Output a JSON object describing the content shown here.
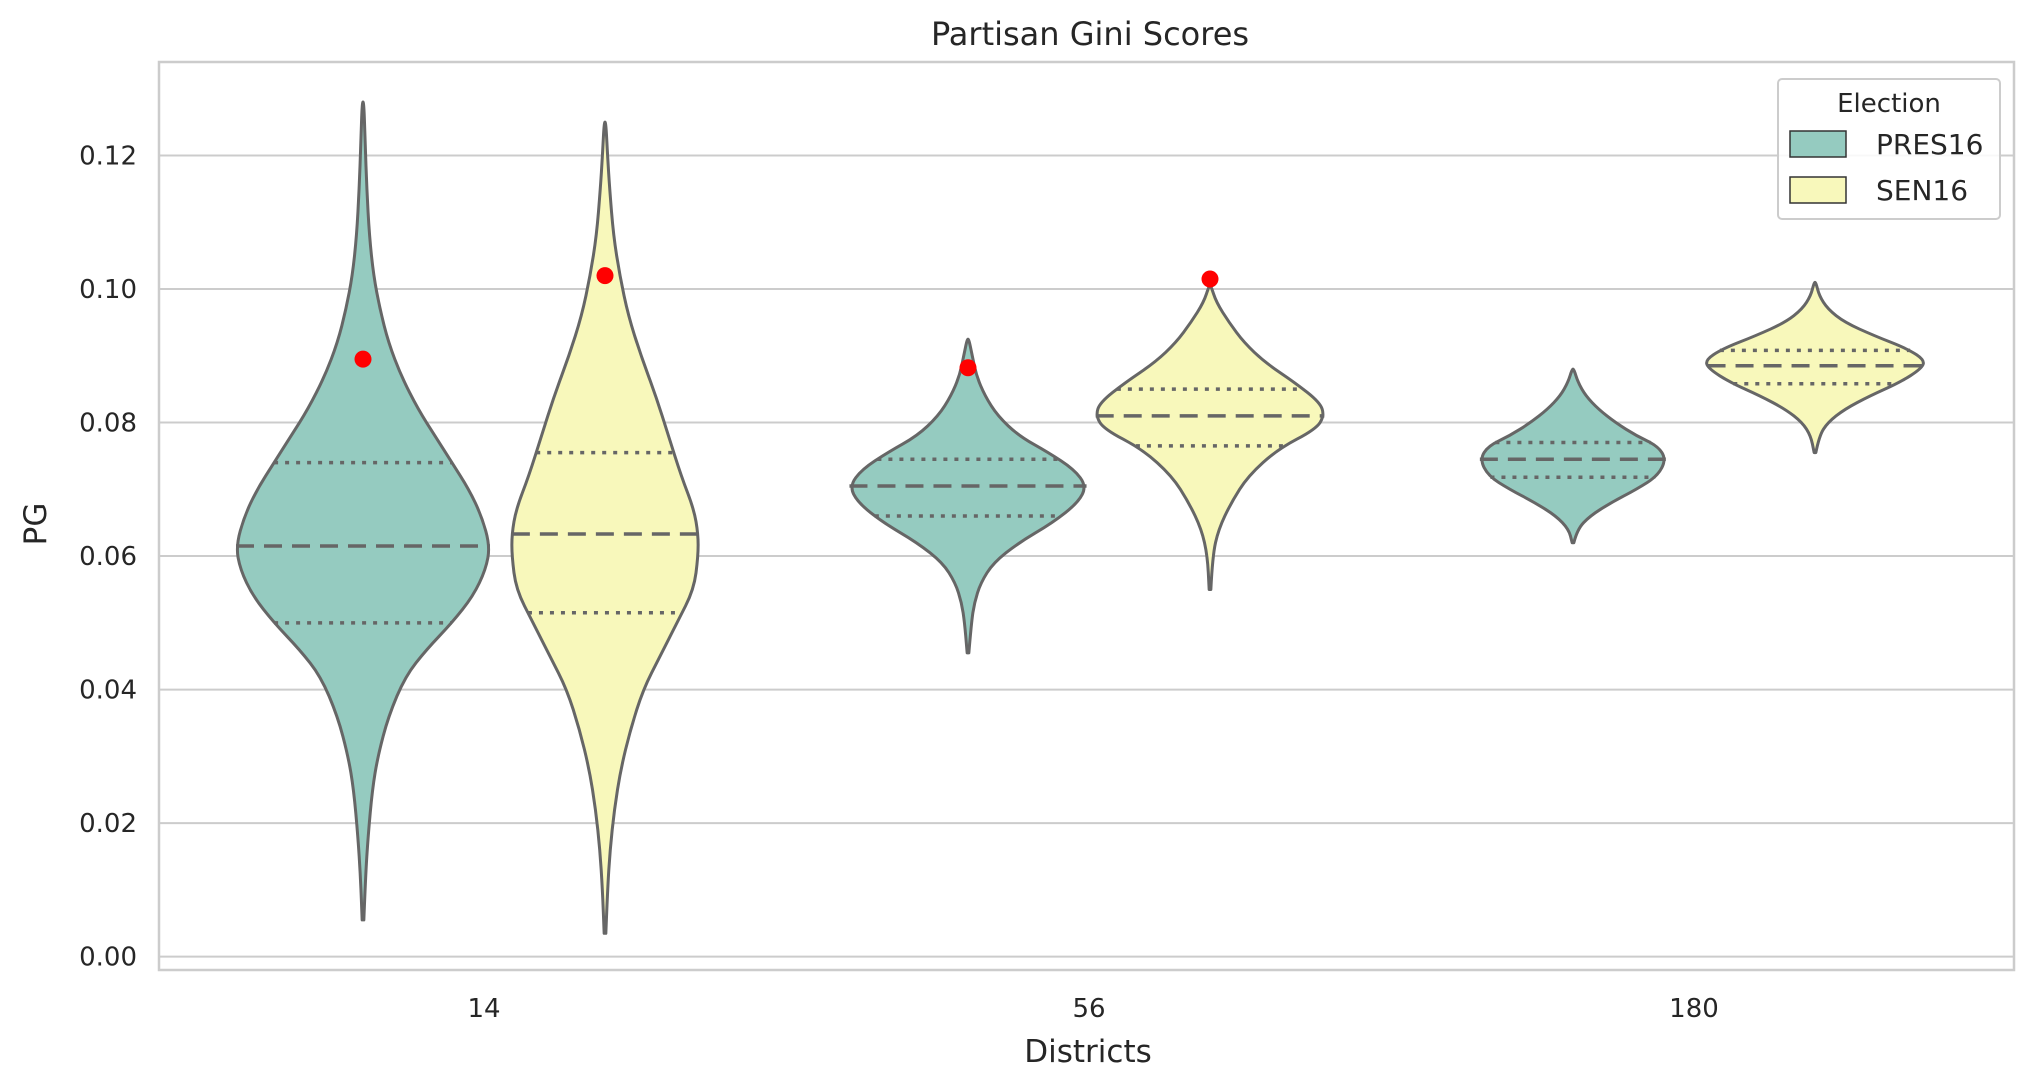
{
  "chart_data": {
    "type": "violin",
    "title": "Partisan Gini Scores",
    "xlabel": "Districts",
    "ylabel": "PG",
    "categories": [
      "14",
      "56",
      "180"
    ],
    "ylim": [
      -0.002,
      0.134
    ],
    "yticks": [
      0.0,
      0.02,
      0.04,
      0.06,
      0.08,
      0.1,
      0.12
    ],
    "ytick_labels": [
      "0.00",
      "0.02",
      "0.04",
      "0.06",
      "0.08",
      "0.10",
      "0.12"
    ],
    "grid": true,
    "legend": {
      "title": "Election",
      "placement": "top-right"
    },
    "series": [
      {
        "name": "PRES16",
        "color": "#95cbc0",
        "violins": [
          {
            "category": "14",
            "min": 0.0055,
            "q1": 0.05,
            "median": 0.0615,
            "q3": 0.074,
            "max": 0.128,
            "observed": 0.0895,
            "profile": [
              [
                0.0055,
                0.002
              ],
              [
                0.012,
                0.006
              ],
              [
                0.018,
                0.012
              ],
              [
                0.025,
                0.022
              ],
              [
                0.03,
                0.035
              ],
              [
                0.036,
                0.06
              ],
              [
                0.042,
                0.1
              ],
              [
                0.046,
                0.15
              ],
              [
                0.05,
                0.21
              ],
              [
                0.054,
                0.26
              ],
              [
                0.058,
                0.29
              ],
              [
                0.0615,
                0.3
              ],
              [
                0.066,
                0.28
              ],
              [
                0.07,
                0.25
              ],
              [
                0.074,
                0.21
              ],
              [
                0.078,
                0.17
              ],
              [
                0.082,
                0.13
              ],
              [
                0.087,
                0.09
              ],
              [
                0.092,
                0.06
              ],
              [
                0.097,
                0.04
              ],
              [
                0.102,
                0.025
              ],
              [
                0.108,
                0.015
              ],
              [
                0.115,
                0.009
              ],
              [
                0.122,
                0.005
              ],
              [
                0.128,
                0.002
              ]
            ]
          },
          {
            "category": "56",
            "min": 0.0455,
            "q1": 0.066,
            "median": 0.0705,
            "q3": 0.0745,
            "max": 0.0925,
            "observed": 0.0882,
            "profile": [
              [
                0.0455,
                0.002
              ],
              [
                0.05,
                0.008
              ],
              [
                0.053,
                0.015
              ],
              [
                0.056,
                0.03
              ],
              [
                0.059,
                0.06
              ],
              [
                0.062,
                0.12
              ],
              [
                0.065,
                0.2
              ],
              [
                0.068,
                0.26
              ],
              [
                0.0705,
                0.28
              ],
              [
                0.073,
                0.25
              ],
              [
                0.0755,
                0.19
              ],
              [
                0.078,
                0.12
              ],
              [
                0.081,
                0.07
              ],
              [
                0.084,
                0.04
              ],
              [
                0.087,
                0.02
              ],
              [
                0.09,
                0.01
              ],
              [
                0.0925,
                0.002
              ]
            ]
          },
          {
            "category": "180",
            "min": 0.062,
            "q1": 0.0718,
            "median": 0.0745,
            "q3": 0.077,
            "max": 0.088,
            "observed": null,
            "profile": [
              [
                0.062,
                0.002
              ],
              [
                0.064,
                0.01
              ],
              [
                0.066,
                0.04
              ],
              [
                0.068,
                0.09
              ],
              [
                0.07,
                0.15
              ],
              [
                0.072,
                0.2
              ],
              [
                0.0745,
                0.22
              ],
              [
                0.0765,
                0.2
              ],
              [
                0.078,
                0.15
              ],
              [
                0.08,
                0.1
              ],
              [
                0.082,
                0.06
              ],
              [
                0.084,
                0.03
              ],
              [
                0.086,
                0.012
              ],
              [
                0.088,
                0.002
              ]
            ]
          }
        ]
      },
      {
        "name": "SEN16",
        "color": "#f8f8bb",
        "violins": [
          {
            "category": "14",
            "min": 0.0035,
            "q1": 0.0515,
            "median": 0.0633,
            "q3": 0.0755,
            "max": 0.125,
            "observed": 0.102,
            "profile": [
              [
                0.0035,
                0.002
              ],
              [
                0.01,
                0.006
              ],
              [
                0.016,
                0.012
              ],
              [
                0.022,
                0.022
              ],
              [
                0.028,
                0.037
              ],
              [
                0.034,
                0.06
              ],
              [
                0.04,
                0.09
              ],
              [
                0.045,
                0.13
              ],
              [
                0.05,
                0.17
              ],
              [
                0.055,
                0.21
              ],
              [
                0.06,
                0.22
              ],
              [
                0.0633,
                0.22
              ],
              [
                0.067,
                0.21
              ],
              [
                0.072,
                0.18
              ],
              [
                0.078,
                0.15
              ],
              [
                0.084,
                0.12
              ],
              [
                0.09,
                0.085
              ],
              [
                0.096,
                0.055
              ],
              [
                0.102,
                0.035
              ],
              [
                0.108,
                0.02
              ],
              [
                0.115,
                0.011
              ],
              [
                0.12,
                0.006
              ],
              [
                0.125,
                0.002
              ]
            ]
          },
          {
            "category": "56",
            "min": 0.055,
            "q1": 0.0765,
            "median": 0.081,
            "q3": 0.085,
            "max": 0.1005,
            "observed": 0.1015,
            "profile": [
              [
                0.055,
                0.002
              ],
              [
                0.06,
                0.006
              ],
              [
                0.064,
                0.02
              ],
              [
                0.068,
                0.05
              ],
              [
                0.072,
                0.09
              ],
              [
                0.076,
                0.16
              ],
              [
                0.079,
                0.25
              ],
              [
                0.081,
                0.27
              ],
              [
                0.083,
                0.26
              ],
              [
                0.086,
                0.2
              ],
              [
                0.089,
                0.13
              ],
              [
                0.092,
                0.08
              ],
              [
                0.095,
                0.045
              ],
              [
                0.098,
                0.015
              ],
              [
                0.1005,
                0.002
              ]
            ]
          },
          {
            "category": "180",
            "min": 0.0755,
            "q1": 0.0858,
            "median": 0.0885,
            "q3": 0.0908,
            "max": 0.101,
            "observed": null,
            "profile": [
              [
                0.0755,
                0.002
              ],
              [
                0.078,
                0.01
              ],
              [
                0.08,
                0.03
              ],
              [
                0.082,
                0.07
              ],
              [
                0.084,
                0.13
              ],
              [
                0.086,
                0.2
              ],
              [
                0.088,
                0.25
              ],
              [
                0.0893,
                0.26
              ],
              [
                0.091,
                0.22
              ],
              [
                0.093,
                0.14
              ],
              [
                0.095,
                0.07
              ],
              [
                0.097,
                0.03
              ],
              [
                0.099,
                0.01
              ],
              [
                0.101,
                0.002
              ]
            ]
          }
        ]
      }
    ]
  },
  "colors": {
    "outline": "#666666",
    "grid": "#cccccc",
    "observed_marker": "#ff0000",
    "text": "#262626"
  }
}
